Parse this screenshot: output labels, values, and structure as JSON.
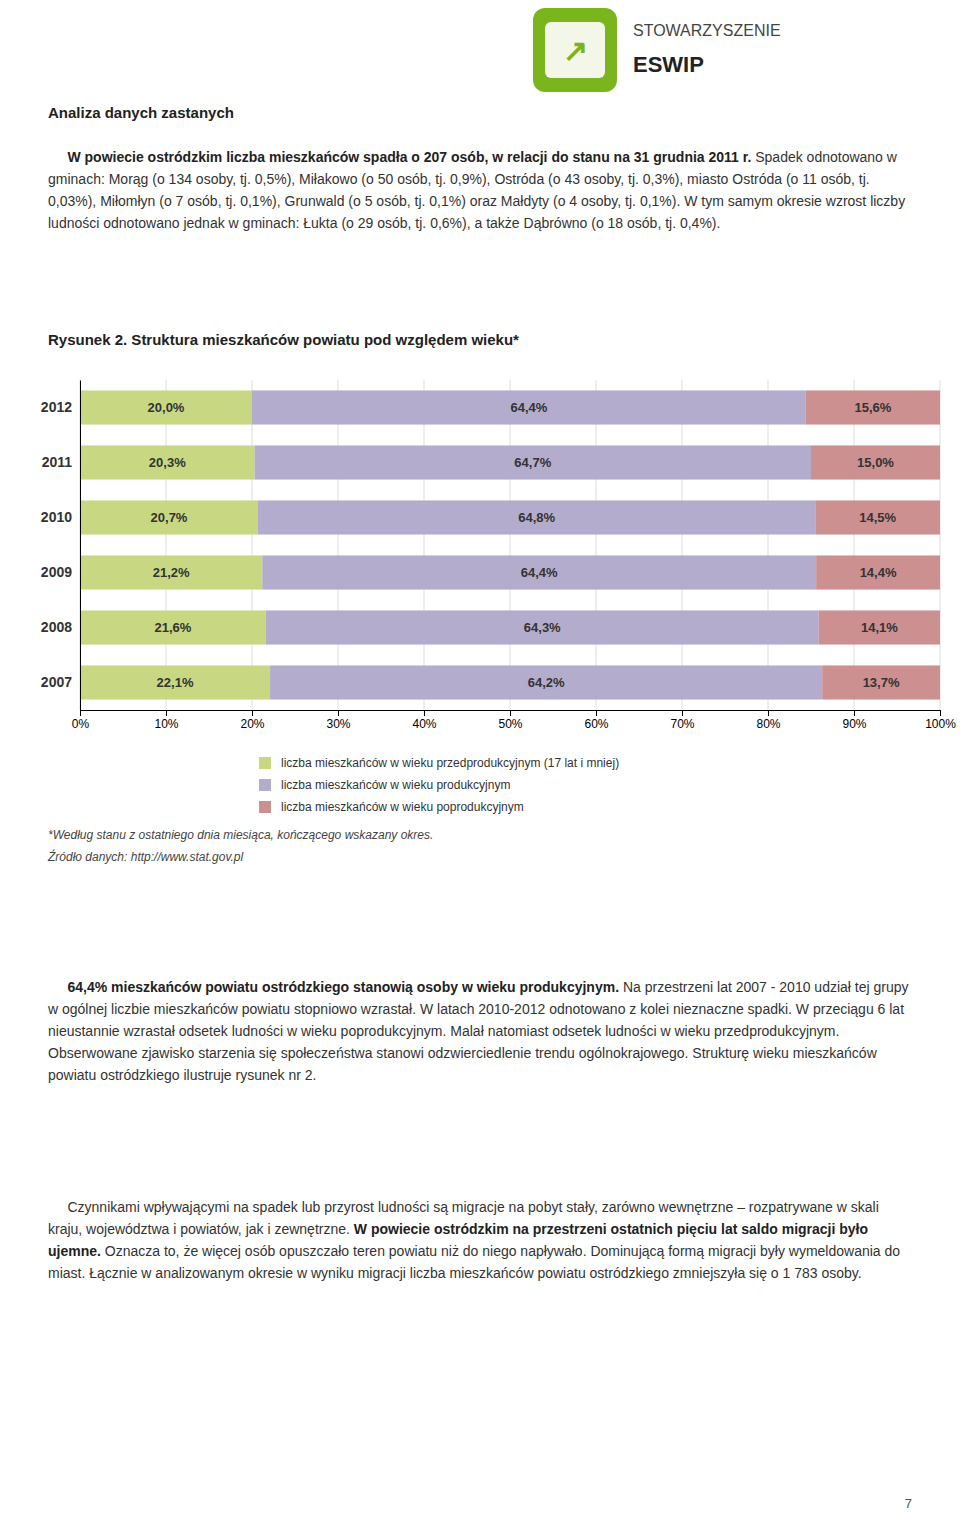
{
  "chart_data": {
    "type": "bar",
    "orientation": "horizontal",
    "stacked": true,
    "title": "Rysunek 2. Struktura mieszkańców powiatu pod względem wieku*",
    "categories": [
      "2012",
      "2011",
      "2010",
      "2009",
      "2008",
      "2007"
    ],
    "series": [
      {
        "name": "liczba mieszkańców w wieku przedprodukcyjnym (17 lat i mniej)",
        "color": "#c8d882",
        "values": [
          20.0,
          20.3,
          20.7,
          21.2,
          21.6,
          22.1
        ],
        "value_labels": [
          "20,0%",
          "20,3%",
          "20,7%",
          "21,2%",
          "21,6%",
          "22,1%"
        ]
      },
      {
        "name": "liczba mieszkańców w wieku produkcyjnym",
        "color": "#b3accc",
        "values": [
          64.4,
          64.7,
          64.8,
          64.4,
          64.3,
          64.2
        ],
        "value_labels": [
          "64,4%",
          "64,7%",
          "64,8%",
          "64,4%",
          "64,3%",
          "64,2%"
        ]
      },
      {
        "name": "liczba mieszkańców w wieku poprodukcyjnym",
        "color": "#cc9090",
        "values": [
          15.6,
          15.0,
          14.5,
          14.4,
          14.1,
          13.7
        ],
        "value_labels": [
          "15,6%",
          "15,0%",
          "14,5%",
          "14,4%",
          "14,1%",
          "13,7%"
        ]
      }
    ],
    "xlim": [
      0,
      100
    ],
    "xticks": [
      {
        "value": 0,
        "label": "0%"
      },
      {
        "value": 10,
        "label": "10%"
      },
      {
        "value": 20,
        "label": "20%"
      },
      {
        "value": 30,
        "label": "30%"
      },
      {
        "value": 40,
        "label": "40%"
      },
      {
        "value": 50,
        "label": "50%"
      },
      {
        "value": 60,
        "label": "60%"
      },
      {
        "value": 70,
        "label": "70%"
      },
      {
        "value": 80,
        "label": "80%"
      },
      {
        "value": 90,
        "label": "90%"
      },
      {
        "value": 100,
        "label": "100%"
      }
    ],
    "grid": true,
    "data_labels": true,
    "legend": "bottom"
  },
  "page": {
    "background": "#ffffff",
    "logo": {
      "color": "#7ab51d",
      "symbol": "↗",
      "text1": "STOWARZYSZENIE",
      "text2": "ESWIP"
    },
    "header": "Analiza danych zastanych",
    "paragraphs": [
      [
        [
          {
            "text": "     W powiecie ostródzkim liczba mieszkańców spadła o 207 osób, w relacji do stanu na 31 grudnia",
            "bold": true
          }
        ],
        [
          {
            "text": "2011 r.",
            "bold": true
          },
          {
            "text": " Spadek odnotowano w gminach: Morąg (o 134 osoby, tj. 0,5%), Miłakowo (o 50 osób, tj. 0,9%), Ostróda",
            "bold": false
          }
        ],
        [
          {
            "text": "(o 43 osoby, tj. 0,3%), miasto Ostróda (o 11 osób, tj. 0,03%), Miłomłyn (o 7 osób, tj. 0,1%), Grunwald (o 5 osób,",
            "bold": false
          }
        ],
        [
          {
            "text": "tj. 0,1%) oraz Małdyty (o 4 osoby, tj. 0,1%). W tym samym okresie wzrost liczby ludności odnotowano jednak w",
            "bold": false
          }
        ],
        [
          {
            "text": "gminach: Łukta (o 29 osób, tj. 0,6%), a także Dąbrówno (o 18 osób, tj. 0,4%).",
            "bold": false
          }
        ]
      ],
      [
        [
          {
            "text": "     64,4% mieszkańców powiatu ostródzkiego stanowią osoby w wieku produkcyjnym.",
            "bold": true
          },
          {
            "text": " Na przestrzeni lat 2007",
            "bold": false
          }
        ],
        [
          {
            "text": "- 2010 udział tej grupy w ogólnej liczbie mieszkańców powiatu stopniowo wzrastał. W latach 2010-2012 odnotowano",
            "bold": false
          }
        ],
        [
          {
            "text": "z kolei nieznaczne spadki. W przeciągu 6 lat nieustannie wzrastał odsetek ludności w wieku poprodukcyjnym. Malał",
            "bold": false
          }
        ],
        [
          {
            "text": "natomiast odsetek ludności w wieku przedprodukcyjnym. Obserwowane zjawisko starzenia się społeczeństwa stanowi",
            "bold": false
          }
        ],
        [
          {
            "text": "odzwierciedlenie trendu ogólnokrajowego. Strukturę wieku mieszkańców powiatu ostródzkiego ilustruje rysunek nr 2.",
            "bold": false
          }
        ]
      ],
      [
        [
          {
            "text": "     Czynnikami wpływającymi na spadek lub przyrost ludności są migracje na pobyt stały, zarówno",
            "bold": false
          }
        ],
        [
          {
            "text": "wewnętrzne – rozpatrywane w skali kraju, województwa i powiatów, jak i zewnętrzne.",
            "bold": false
          },
          {
            "text": " W powiecie ostródzkim",
            "bold": true
          }
        ],
        [
          {
            "text": "na przestrzeni ostatnich pięciu lat saldo migracji było ujemne.",
            "bold": true
          },
          {
            "text": " Oznacza to, że więcej osób opuszczało teren powiatu niż do niego napływało. Dominującą",
            "bold": false
          }
        ],
        [
          {
            "text": "formą migracji były wymeldowania do miast. Łącznie w analizowanym okresie w wyniku migracji liczba mieszkańców",
            "bold": false
          }
        ],
        [
          {
            "text": "powiatu ostródzkiego zmniejszyła się o 1 783 osoby.",
            "bold": false
          }
        ]
      ]
    ],
    "footnotes": [
      "*Według stanu z ostatniego dnia miesiąca, kończącego wskazany okres.",
      "Źródło danych: http://www.stat.gov.pl"
    ],
    "page_number": "7"
  }
}
